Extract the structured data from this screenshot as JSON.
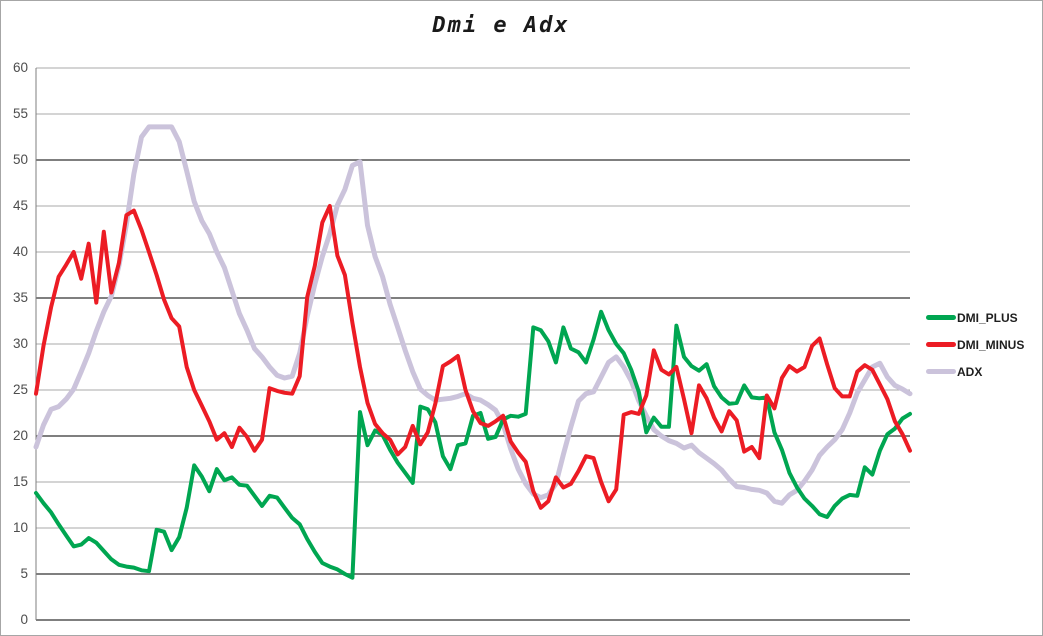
{
  "window": {
    "background": "#ffffff",
    "border_color": "#a6a6a6"
  },
  "chart_data": {
    "type": "line",
    "title": "Dmi e Adx",
    "xlabel": "",
    "ylabel": "",
    "x_axis": {
      "tick_labels_visible": false,
      "points": 117
    },
    "y_axis": {
      "min": 0,
      "max": 60,
      "tick_step": 5,
      "ticks": [
        60,
        55,
        50,
        45,
        40,
        35,
        30,
        25,
        20,
        15,
        10,
        5,
        0
      ]
    },
    "grid": {
      "on": true,
      "light_line_color": "#a8a8a8",
      "dark_line_color": "#7f7f7f",
      "axis_color": "#7f7f7f"
    },
    "legend": {
      "position": "right"
    },
    "draw_order": [
      2,
      0,
      1
    ],
    "series": [
      {
        "name": "DMI_PLUS",
        "color": "#00A651",
        "values": [
          13.8,
          12.7,
          11.7,
          10.4,
          9.2,
          8.0,
          8.2,
          8.9,
          8.4,
          7.5,
          6.6,
          6.0,
          5.8,
          5.7,
          5.4,
          5.3,
          9.8,
          9.6,
          7.6,
          9.0,
          12.2,
          16.8,
          15.6,
          14.0,
          16.4,
          15.2,
          15.5,
          14.7,
          14.6,
          13.5,
          12.4,
          13.5,
          13.3,
          12.2,
          11.1,
          10.4,
          8.8,
          7.4,
          6.2,
          5.8,
          5.5,
          5.0,
          4.6,
          22.6,
          19.0,
          20.6,
          20.1,
          18.5,
          17.1,
          16.0,
          14.9,
          23.2,
          22.9,
          21.5,
          17.8,
          16.4,
          19.0,
          19.2,
          22.2,
          22.5,
          19.7,
          19.9,
          21.8,
          22.2,
          22.1,
          22.4,
          31.8,
          31.5,
          30.3,
          28.0,
          31.8,
          29.5,
          29.1,
          28.0,
          30.5,
          33.5,
          31.5,
          30.0,
          29.0,
          27.2,
          24.8,
          20.4,
          22.0,
          21.0,
          21.0,
          32.0,
          28.6,
          27.6,
          27.1,
          27.8,
          25.4,
          24.2,
          23.5,
          23.6,
          25.5,
          24.2,
          24.1,
          24.2,
          20.4,
          18.5,
          16.0,
          14.4,
          13.2,
          12.4,
          11.5,
          11.2,
          12.4,
          13.2,
          13.6,
          13.5,
          16.6,
          15.8,
          18.4,
          20.2,
          20.8,
          21.9,
          22.4
        ]
      },
      {
        "name": "DMI_MINUS",
        "color": "#EC1C24",
        "values": [
          24.6,
          29.8,
          34.0,
          37.3,
          38.6,
          40.0,
          37.1,
          40.9,
          34.5,
          42.2,
          35.6,
          38.8,
          44.0,
          44.5,
          42.4,
          40.0,
          37.5,
          34.8,
          32.8,
          31.9,
          27.5,
          25.0,
          23.3,
          21.6,
          19.6,
          20.3,
          18.8,
          20.9,
          19.9,
          18.4,
          19.6,
          25.2,
          24.9,
          24.7,
          24.6,
          26.5,
          35.1,
          38.5,
          43.2,
          45.0,
          39.6,
          37.5,
          32.3,
          27.5,
          23.6,
          21.3,
          20.3,
          19.6,
          18.0,
          18.8,
          21.1,
          19.1,
          20.4,
          23.5,
          27.6,
          28.1,
          28.7,
          25.0,
          22.7,
          21.4,
          21.1,
          21.6,
          22.2,
          19.4,
          18.2,
          17.2,
          14.0,
          12.2,
          12.9,
          15.5,
          14.4,
          14.8,
          16.2,
          17.8,
          17.6,
          15.0,
          12.9,
          14.2,
          22.3,
          22.6,
          22.4,
          24.4,
          29.3,
          27.2,
          26.7,
          27.5,
          24.0,
          20.3,
          25.5,
          24.1,
          22.0,
          20.5,
          22.7,
          21.7,
          18.3,
          18.8,
          17.6,
          24.4,
          23.0,
          26.3,
          27.6,
          27.0,
          27.5,
          29.8,
          30.6,
          27.8,
          25.2,
          24.3,
          24.3,
          27.0,
          27.7,
          27.2,
          25.6,
          24.0,
          21.6,
          20.2,
          18.4
        ]
      },
      {
        "name": "ADX",
        "color": "#CBC3DB",
        "values": [
          18.8,
          21.2,
          22.9,
          23.2,
          24.0,
          25.1,
          27.0,
          29.0,
          31.4,
          33.5,
          35.2,
          38.5,
          43.0,
          48.5,
          52.5,
          53.6,
          53.6,
          53.6,
          53.6,
          52.0,
          48.8,
          45.5,
          43.4,
          42.0,
          40.0,
          38.3,
          35.8,
          33.3,
          31.5,
          29.5,
          28.6,
          27.5,
          26.6,
          26.3,
          26.5,
          29.0,
          33.0,
          36.5,
          39.5,
          42.0,
          45.1,
          46.8,
          49.4,
          49.8,
          42.9,
          39.5,
          37.3,
          34.3,
          31.8,
          29.3,
          27.0,
          25.1,
          24.4,
          23.9,
          24.0,
          24.1,
          24.3,
          24.6,
          24.1,
          23.9,
          23.4,
          22.8,
          21.3,
          18.6,
          16.4,
          14.8,
          13.7,
          13.3,
          13.6,
          14.8,
          18.0,
          21.0,
          23.8,
          24.6,
          24.8,
          26.4,
          28.0,
          28.6,
          27.5,
          26.0,
          23.8,
          22.2,
          20.7,
          20.0,
          19.5,
          19.2,
          18.7,
          19.0,
          18.2,
          17.6,
          17.0,
          16.3,
          15.3,
          14.5,
          14.4,
          14.2,
          14.1,
          13.8,
          12.9,
          12.7,
          13.6,
          14.1,
          15.1,
          16.3,
          17.9,
          18.8,
          19.6,
          20.7,
          22.5,
          24.7,
          26.1,
          27.5,
          27.9,
          26.4,
          25.5,
          25.1,
          24.6
        ]
      }
    ]
  }
}
